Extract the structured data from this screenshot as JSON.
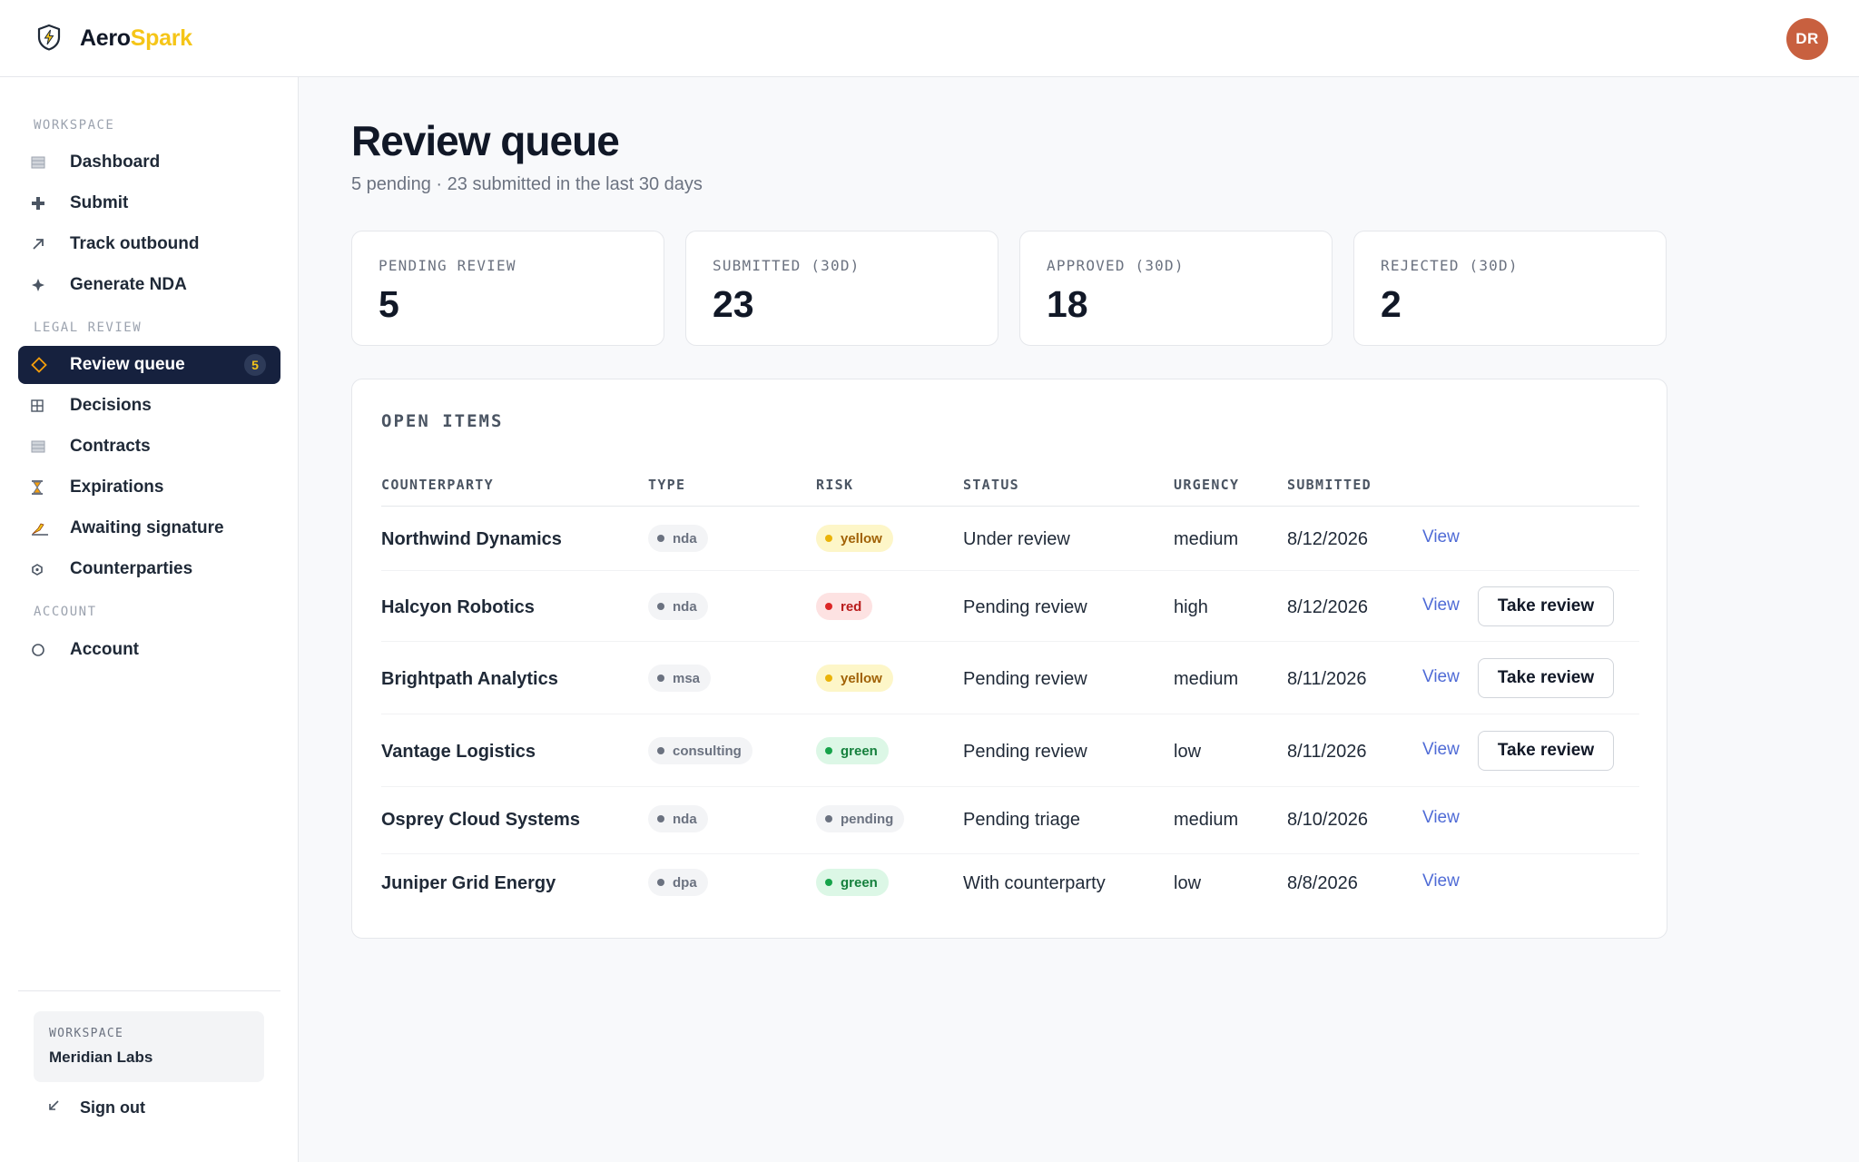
{
  "brand": {
    "name_part1": "Aero",
    "name_part2": "Spark",
    "logo_icon": "shield-bolt-icon"
  },
  "user": {
    "initials": "DR",
    "avatar_color": "#c8603f"
  },
  "sidebar": {
    "sections": [
      {
        "label": "WORKSPACE",
        "items": [
          {
            "label": "Dashboard",
            "icon": "dashboard-icon"
          },
          {
            "label": "Submit",
            "icon": "plus-icon"
          },
          {
            "label": "Track outbound",
            "icon": "arrow-up-right-icon"
          },
          {
            "label": "Generate NDA",
            "icon": "sparkle-icon"
          }
        ]
      },
      {
        "label": "LEGAL REVIEW",
        "items": [
          {
            "label": "Review queue",
            "icon": "diamond-icon",
            "active": true,
            "badge": "5"
          },
          {
            "label": "Decisions",
            "icon": "grid-icon"
          },
          {
            "label": "Contracts",
            "icon": "document-icon"
          },
          {
            "label": "Expirations",
            "icon": "hourglass-icon"
          },
          {
            "label": "Awaiting signature",
            "icon": "signature-icon"
          },
          {
            "label": "Counterparties",
            "icon": "building-icon"
          }
        ]
      },
      {
        "label": "ACCOUNT",
        "items": [
          {
            "label": "Account",
            "icon": "circle-user-icon"
          }
        ]
      }
    ],
    "workspace_card": {
      "label": "WORKSPACE",
      "value": "Meridian Labs"
    },
    "sign_out": {
      "label": "Sign out",
      "icon": "arrow-down-left-icon"
    }
  },
  "main": {
    "title": "Review queue",
    "subtitle": "5 pending · 23 submitted in the last 30 days",
    "stats": [
      {
        "label": "PENDING REVIEW",
        "value": "5"
      },
      {
        "label": "SUBMITTED (30D)",
        "value": "23"
      },
      {
        "label": "APPROVED (30D)",
        "value": "18"
      },
      {
        "label": "REJECTED (30D)",
        "value": "2"
      }
    ],
    "table": {
      "title": "OPEN ITEMS",
      "columns": [
        "COUNTERPARTY",
        "TYPE",
        "RISK",
        "STATUS",
        "URGENCY",
        "SUBMITTED"
      ],
      "view_label": "View",
      "take_review_label": "Take review",
      "rows": [
        {
          "counterparty": "Northwind Dynamics",
          "type": "nda",
          "risk": "yellow",
          "status": "Under review",
          "urgency": "medium",
          "submitted": "8/12/2026",
          "can_take": false
        },
        {
          "counterparty": "Halcyon Robotics",
          "type": "nda",
          "risk": "red",
          "status": "Pending review",
          "urgency": "high",
          "submitted": "8/12/2026",
          "can_take": true
        },
        {
          "counterparty": "Brightpath Analytics",
          "type": "msa",
          "risk": "yellow",
          "status": "Pending review",
          "urgency": "medium",
          "submitted": "8/11/2026",
          "can_take": true
        },
        {
          "counterparty": "Vantage Logistics",
          "type": "consulting",
          "risk": "green",
          "status": "Pending review",
          "urgency": "low",
          "submitted": "8/11/2026",
          "can_take": true
        },
        {
          "counterparty": "Osprey Cloud Systems",
          "type": "nda",
          "risk": "pending",
          "status": "Pending triage",
          "urgency": "medium",
          "submitted": "8/10/2026",
          "can_take": false
        },
        {
          "counterparty": "Juniper Grid Energy",
          "type": "dpa",
          "risk": "green",
          "status": "With counterparty",
          "urgency": "low",
          "submitted": "8/8/2026",
          "can_take": false
        }
      ]
    }
  }
}
